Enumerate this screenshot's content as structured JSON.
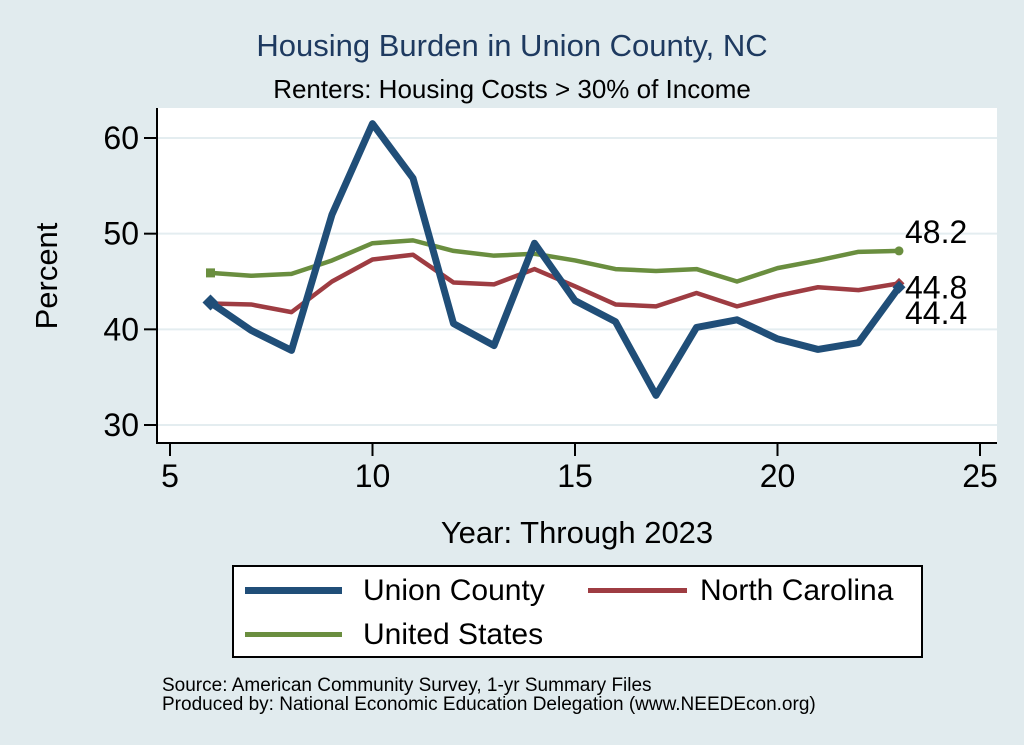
{
  "chart_data": {
    "type": "line",
    "title": "Housing Burden in Union County, NC",
    "subtitle": "Renters: Housing Costs > 30% of Income",
    "xlabel": "Year: Through 2023",
    "ylabel": "Percent",
    "x": [
      6,
      7,
      8,
      9,
      10,
      11,
      12,
      13,
      14,
      15,
      16,
      17,
      18,
      19,
      20,
      21,
      22,
      23
    ],
    "xticks": [
      5,
      10,
      15,
      20,
      25
    ],
    "yticks": [
      30,
      40,
      50,
      60
    ],
    "xlim": [
      4.7,
      25.4
    ],
    "ylim": [
      28.1,
      63.1
    ],
    "grid": "horizontal",
    "series": [
      {
        "name": "Union County",
        "color": "#204e78",
        "line_width": 7,
        "marker_start": "diamond",
        "marker_end": "diamond",
        "end_label": "44.4",
        "values": [
          42.8,
          39.9,
          37.8,
          52.0,
          61.5,
          55.8,
          40.6,
          38.3,
          49.0,
          43.0,
          40.8,
          33.1,
          40.2,
          41.0,
          39.0,
          37.9,
          38.6,
          44.4
        ]
      },
      {
        "name": "North Carolina",
        "color": "#9e3c42",
        "line_width": 4.5,
        "marker_start": "diamond",
        "marker_end": "diamond",
        "end_label": "44.8",
        "values": [
          42.7,
          42.6,
          41.8,
          45.0,
          47.3,
          47.8,
          44.9,
          44.7,
          46.3,
          44.5,
          42.6,
          42.4,
          43.8,
          42.4,
          43.5,
          44.4,
          44.1,
          44.8
        ]
      },
      {
        "name": "United States",
        "color": "#6a8e3f",
        "line_width": 4.5,
        "marker_start": "square",
        "marker_end": "circle",
        "end_label": "48.2",
        "values": [
          45.9,
          45.6,
          45.8,
          47.2,
          49.0,
          49.3,
          48.2,
          47.7,
          47.9,
          47.2,
          46.3,
          46.1,
          46.3,
          45.0,
          46.4,
          47.2,
          48.1,
          48.2
        ]
      }
    ],
    "legend_position": "bottom",
    "colors": {
      "background": "#e1ebee",
      "plot_background": "#ffffff",
      "grid": "#e4edf0",
      "axis": "#000000",
      "title": "#1e3a60",
      "text": "#000000"
    }
  },
  "notes": [
    "Source: American Community Survey, 1-yr Summary Files",
    "Produced by: National Economic Education Delegation (www.NEEDEcon.org)"
  ]
}
